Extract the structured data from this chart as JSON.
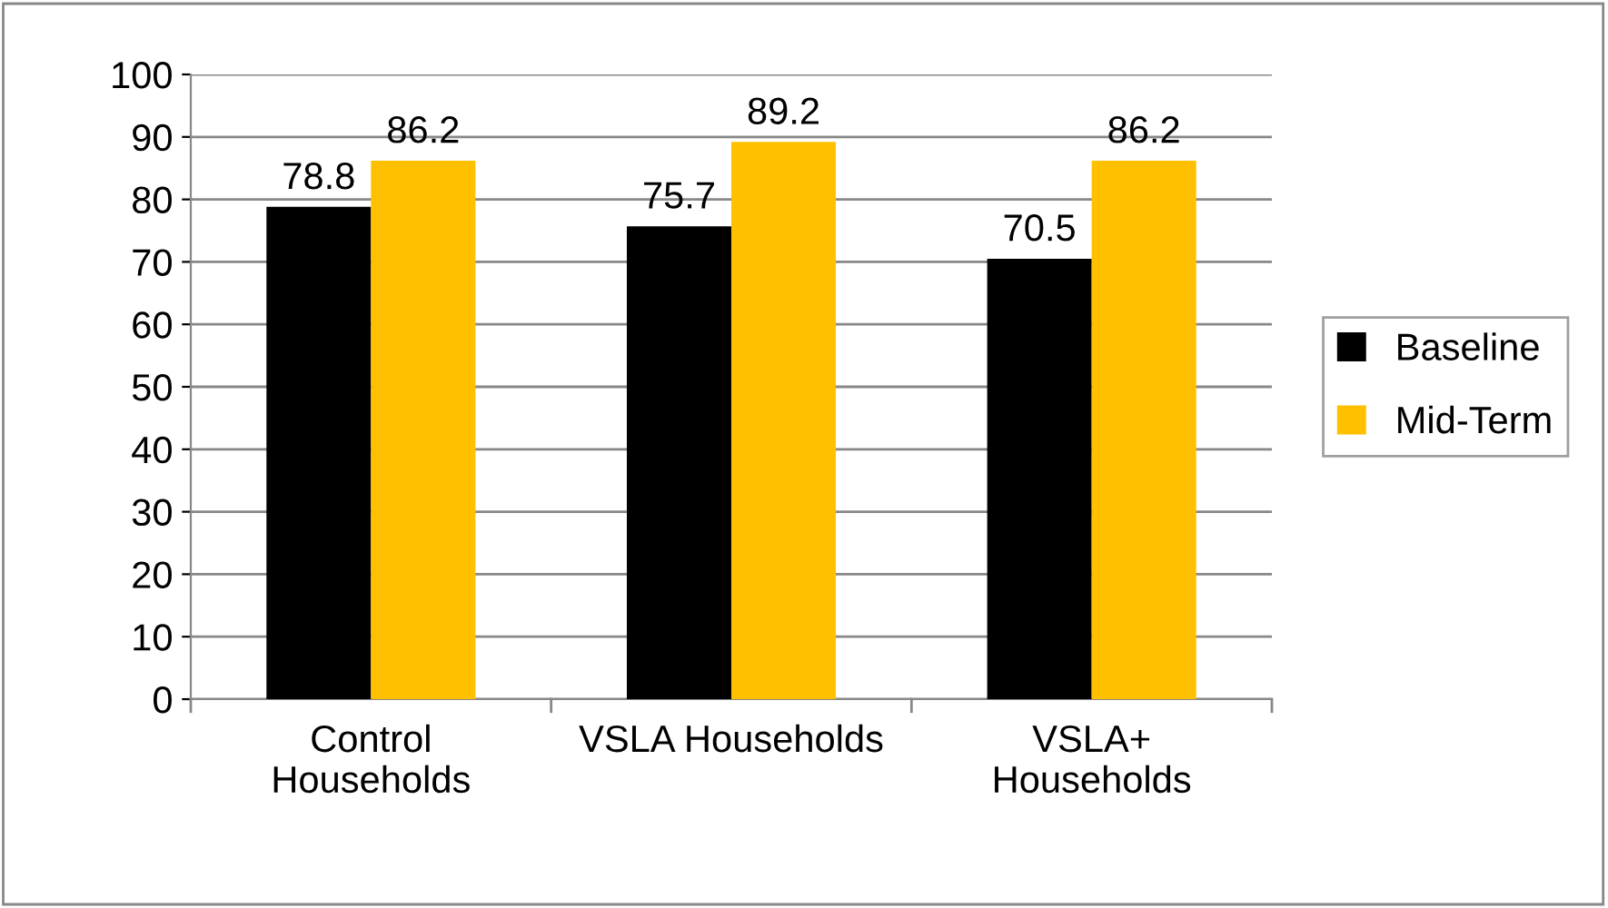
{
  "chart_data": {
    "type": "bar",
    "categories": [
      "Control\nHouseholds",
      "VSLA Households",
      "VSLA+\nHouseholds"
    ],
    "series": [
      {
        "name": "Baseline",
        "color": "#000000",
        "values": [
          78.8,
          75.7,
          70.5
        ]
      },
      {
        "name": "Mid-Term",
        "color": "#ffc000",
        "values": [
          86.2,
          89.2,
          86.2
        ]
      }
    ],
    "ylim": [
      0,
      100
    ],
    "yticks": [
      0,
      10,
      20,
      30,
      40,
      50,
      60,
      70,
      80,
      90,
      100
    ],
    "grid": "y",
    "legend": "right",
    "data_labels": true
  }
}
